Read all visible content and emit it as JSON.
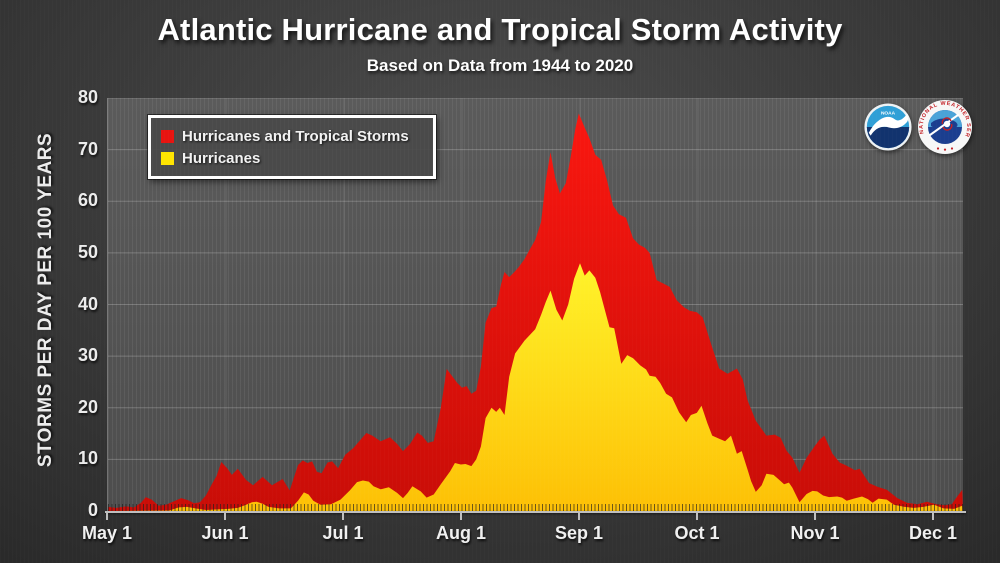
{
  "header": {
    "title": "Atlantic Hurricane and Tropical Storm Activity",
    "subtitle": "Based on Data from 1944 to 2020"
  },
  "logos": {
    "noaa_text": "NOAA",
    "nws_ring_text": "NATIONAL WEATHER SERVICE"
  },
  "colors": {
    "background_center": "#4c4c4c",
    "background_edge": "#252525",
    "plot_background": "#555555",
    "axis": "#bfbfbf",
    "text": "#ffffff",
    "total_red": "#e81410",
    "hurricane_yellow": "#ffe400"
  },
  "chart_data": {
    "type": "area",
    "title": "Atlantic Hurricane and Tropical Storm Activity",
    "subtitle": "Based on Data from 1944 to 2020",
    "xlabel": "",
    "ylabel": "STORMS PER DAY PER 100 YEARS",
    "ylim": [
      0,
      80
    ],
    "yticks": [
      0,
      10,
      20,
      30,
      40,
      50,
      60,
      70,
      80
    ],
    "xticklabels": [
      "May 1",
      "Jun 1",
      "Jul 1",
      "Aug 1",
      "Sep 1",
      "Oct 1",
      "Nov 1",
      "Dec 1"
    ],
    "x_units_note": "x is measured in month-tick intervals from May 1 (0 = May 1, 1 = Jun 1, ... 7 = Dec 1, axis ends at 7.24)",
    "x_max_units": 7.245,
    "grid": true,
    "legend_position": "top-left",
    "series": [
      {
        "name": "Hurricanes and Tropical Storms",
        "color": "#e81410",
        "gradient": [
          "#fa1710",
          "#c90d07"
        ],
        "points": [
          [
            0,
            0.8
          ],
          [
            0.07,
            0.6
          ],
          [
            0.15,
            0.9
          ],
          [
            0.22,
            0.7
          ],
          [
            0.28,
            1.6
          ],
          [
            0.32,
            2.7
          ],
          [
            0.37,
            2.2
          ],
          [
            0.43,
            1
          ],
          [
            0.49,
            1.2
          ],
          [
            0.55,
            1.8
          ],
          [
            0.62,
            2.5
          ],
          [
            0.68,
            2.1
          ],
          [
            0.73,
            1.5
          ],
          [
            0.78,
            1.7
          ],
          [
            0.83,
            3
          ],
          [
            0.88,
            5.2
          ],
          [
            0.92,
            6.8
          ],
          [
            0.96,
            9.5
          ],
          [
            1.01,
            8.3
          ],
          [
            1.05,
            7
          ],
          [
            1.1,
            8.2
          ],
          [
            1.17,
            6
          ],
          [
            1.23,
            5
          ],
          [
            1.31,
            6.6
          ],
          [
            1.39,
            5
          ],
          [
            1.48,
            6.2
          ],
          [
            1.54,
            4
          ],
          [
            1.61,
            8.9
          ],
          [
            1.65,
            9.8
          ],
          [
            1.69,
            9.3
          ],
          [
            1.73,
            9.6
          ],
          [
            1.77,
            7.6
          ],
          [
            1.81,
            7.3
          ],
          [
            1.86,
            9.4
          ],
          [
            1.9,
            9.6
          ],
          [
            1.95,
            8.3
          ],
          [
            2.01,
            10.9
          ],
          [
            2.08,
            12.2
          ],
          [
            2.14,
            13.8
          ],
          [
            2.19,
            15.1
          ],
          [
            2.24,
            14.6
          ],
          [
            2.31,
            13.5
          ],
          [
            2.39,
            14.3
          ],
          [
            2.45,
            13
          ],
          [
            2.5,
            11.6
          ],
          [
            2.56,
            13
          ],
          [
            2.62,
            15.2
          ],
          [
            2.66,
            14.6
          ],
          [
            2.71,
            13.2
          ],
          [
            2.76,
            13.5
          ],
          [
            2.82,
            20
          ],
          [
            2.87,
            27.5
          ],
          [
            2.92,
            26
          ],
          [
            2.96,
            24.8
          ],
          [
            3,
            23.9
          ],
          [
            3.04,
            24.2
          ],
          [
            3.08,
            22.7
          ],
          [
            3.12,
            23.3
          ],
          [
            3.16,
            28
          ],
          [
            3.2,
            36.5
          ],
          [
            3.25,
            39.3
          ],
          [
            3.29,
            39.6
          ],
          [
            3.33,
            43.8
          ],
          [
            3.36,
            46.3
          ],
          [
            3.4,
            45.3
          ],
          [
            3.44,
            46.2
          ],
          [
            3.48,
            47.2
          ],
          [
            3.53,
            48.8
          ],
          [
            3.57,
            50.5
          ],
          [
            3.62,
            52.5
          ],
          [
            3.67,
            56
          ],
          [
            3.71,
            64
          ],
          [
            3.75,
            69.5
          ],
          [
            3.79,
            64.5
          ],
          [
            3.83,
            61.5
          ],
          [
            3.88,
            63.5
          ],
          [
            3.92,
            68.5
          ],
          [
            3.96,
            74
          ],
          [
            3.99,
            77
          ],
          [
            4.03,
            74.8
          ],
          [
            4.08,
            72.2
          ],
          [
            4.13,
            69
          ],
          [
            4.18,
            68
          ],
          [
            4.23,
            64
          ],
          [
            4.28,
            59.2
          ],
          [
            4.33,
            57.5
          ],
          [
            4.39,
            56.8
          ],
          [
            4.45,
            52.8
          ],
          [
            4.5,
            51.6
          ],
          [
            4.55,
            51
          ],
          [
            4.59,
            50
          ],
          [
            4.65,
            44.7
          ],
          [
            4.71,
            44
          ],
          [
            4.76,
            43.4
          ],
          [
            4.82,
            40.8
          ],
          [
            4.88,
            39.5
          ],
          [
            4.93,
            38.8
          ],
          [
            4.99,
            38.5
          ],
          [
            5.04,
            37.5
          ],
          [
            5.11,
            32.4
          ],
          [
            5.18,
            27.6
          ],
          [
            5.25,
            26.6
          ],
          [
            5.33,
            27.6
          ],
          [
            5.38,
            25.5
          ],
          [
            5.42,
            21.4
          ],
          [
            5.49,
            17.5
          ],
          [
            5.58,
            14.6
          ],
          [
            5.65,
            14.8
          ],
          [
            5.7,
            14.2
          ],
          [
            5.75,
            11.7
          ],
          [
            5.8,
            10.3
          ],
          [
            5.86,
            7.4
          ],
          [
            5.92,
            10.3
          ],
          [
            5.99,
            12.6
          ],
          [
            6.03,
            13.8
          ],
          [
            6.07,
            14.6
          ],
          [
            6.14,
            11.1
          ],
          [
            6.2,
            9.4
          ],
          [
            6.25,
            8.9
          ],
          [
            6.3,
            8.3
          ],
          [
            6.33,
            7.9
          ],
          [
            6.37,
            8.2
          ],
          [
            6.45,
            5.4
          ],
          [
            6.52,
            4.7
          ],
          [
            6.6,
            4.1
          ],
          [
            6.69,
            2.5
          ],
          [
            6.77,
            1.6
          ],
          [
            6.86,
            1.3
          ],
          [
            6.94,
            1.8
          ],
          [
            7.02,
            1.3
          ],
          [
            7.09,
            1.1
          ],
          [
            7.15,
            1.3
          ],
          [
            7.19,
            2.6
          ],
          [
            7.24,
            4.1
          ]
        ]
      },
      {
        "name": "Hurricanes",
        "color": "#ffe400",
        "gradient": [
          "#fff32a",
          "#fdc005"
        ],
        "points": [
          [
            0,
            0
          ],
          [
            0.52,
            0.1
          ],
          [
            0.6,
            0.7
          ],
          [
            0.67,
            0.8
          ],
          [
            0.74,
            0.5
          ],
          [
            0.83,
            0.2
          ],
          [
            0.91,
            0.3
          ],
          [
            1.02,
            0.4
          ],
          [
            1.1,
            0.6
          ],
          [
            1.16,
            1.1
          ],
          [
            1.22,
            1.7
          ],
          [
            1.26,
            1.8
          ],
          [
            1.31,
            1.4
          ],
          [
            1.36,
            0.8
          ],
          [
            1.45,
            0.5
          ],
          [
            1.55,
            0.5
          ],
          [
            1.61,
            2
          ],
          [
            1.66,
            3.6
          ],
          [
            1.7,
            3.2
          ],
          [
            1.74,
            2
          ],
          [
            1.8,
            1.2
          ],
          [
            1.89,
            1.3
          ],
          [
            1.97,
            2.2
          ],
          [
            2.05,
            4
          ],
          [
            2.11,
            5.6
          ],
          [
            2.16,
            5.9
          ],
          [
            2.21,
            5.7
          ],
          [
            2.25,
            4.8
          ],
          [
            2.31,
            4.2
          ],
          [
            2.38,
            4.6
          ],
          [
            2.45,
            3.5
          ],
          [
            2.5,
            2.5
          ],
          [
            2.54,
            3.5
          ],
          [
            2.58,
            4.8
          ],
          [
            2.65,
            3.8
          ],
          [
            2.7,
            2.6
          ],
          [
            2.76,
            3.2
          ],
          [
            2.82,
            5.2
          ],
          [
            2.9,
            7.7
          ],
          [
            2.94,
            9.3
          ],
          [
            2.99,
            9
          ],
          [
            3.03,
            9.1
          ],
          [
            3.08,
            8.7
          ],
          [
            3.12,
            10
          ],
          [
            3.16,
            12.5
          ],
          [
            3.2,
            18
          ],
          [
            3.25,
            20
          ],
          [
            3.29,
            19.2
          ],
          [
            3.32,
            20
          ],
          [
            3.36,
            18.6
          ],
          [
            3.4,
            26
          ],
          [
            3.45,
            30.5
          ],
          [
            3.53,
            33
          ],
          [
            3.62,
            35.2
          ],
          [
            3.67,
            38
          ],
          [
            3.71,
            40.5
          ],
          [
            3.75,
            42.7
          ],
          [
            3.8,
            39
          ],
          [
            3.85,
            36.9
          ],
          [
            3.9,
            40
          ],
          [
            3.95,
            45
          ],
          [
            4,
            48
          ],
          [
            4.04,
            45.6
          ],
          [
            4.08,
            46.6
          ],
          [
            4.13,
            45.2
          ],
          [
            4.17,
            42.4
          ],
          [
            4.21,
            39
          ],
          [
            4.25,
            35.6
          ],
          [
            4.29,
            35.4
          ],
          [
            4.35,
            28.5
          ],
          [
            4.4,
            30.2
          ],
          [
            4.45,
            29.6
          ],
          [
            4.51,
            28.2
          ],
          [
            4.56,
            27.4
          ],
          [
            4.59,
            26.2
          ],
          [
            4.64,
            26
          ],
          [
            4.68,
            24.8
          ],
          [
            4.73,
            22.7
          ],
          [
            4.78,
            22
          ],
          [
            4.84,
            19.1
          ],
          [
            4.9,
            17.2
          ],
          [
            4.94,
            18.6
          ],
          [
            4.99,
            19
          ],
          [
            5.03,
            20.4
          ],
          [
            5.08,
            17
          ],
          [
            5.12,
            14.6
          ],
          [
            5.18,
            14
          ],
          [
            5.23,
            13.5
          ],
          [
            5.28,
            14.6
          ],
          [
            5.33,
            11.1
          ],
          [
            5.37,
            11.6
          ],
          [
            5.42,
            8
          ],
          [
            5.45,
            5.8
          ],
          [
            5.49,
            3.7
          ],
          [
            5.54,
            5
          ],
          [
            5.58,
            7.2
          ],
          [
            5.64,
            7
          ],
          [
            5.69,
            6
          ],
          [
            5.73,
            5.2
          ],
          [
            5.77,
            5.5
          ],
          [
            5.8,
            4.5
          ],
          [
            5.86,
            1.7
          ],
          [
            5.92,
            3.3
          ],
          [
            5.97,
            3.9
          ],
          [
            6.01,
            3.8
          ],
          [
            6.06,
            3
          ],
          [
            6.11,
            2.7
          ],
          [
            6.18,
            2.8
          ],
          [
            6.22,
            2.6
          ],
          [
            6.26,
            2
          ],
          [
            6.32,
            2.4
          ],
          [
            6.39,
            2.8
          ],
          [
            6.44,
            2.3
          ],
          [
            6.48,
            1.6
          ],
          [
            6.53,
            2.4
          ],
          [
            6.6,
            2.2
          ],
          [
            6.66,
            1.2
          ],
          [
            6.75,
            0.8
          ],
          [
            6.83,
            0.6
          ],
          [
            6.91,
            0.8
          ],
          [
            7,
            1.2
          ],
          [
            7.08,
            0.5
          ],
          [
            7.17,
            0.4
          ],
          [
            7.24,
            1
          ]
        ]
      }
    ]
  }
}
